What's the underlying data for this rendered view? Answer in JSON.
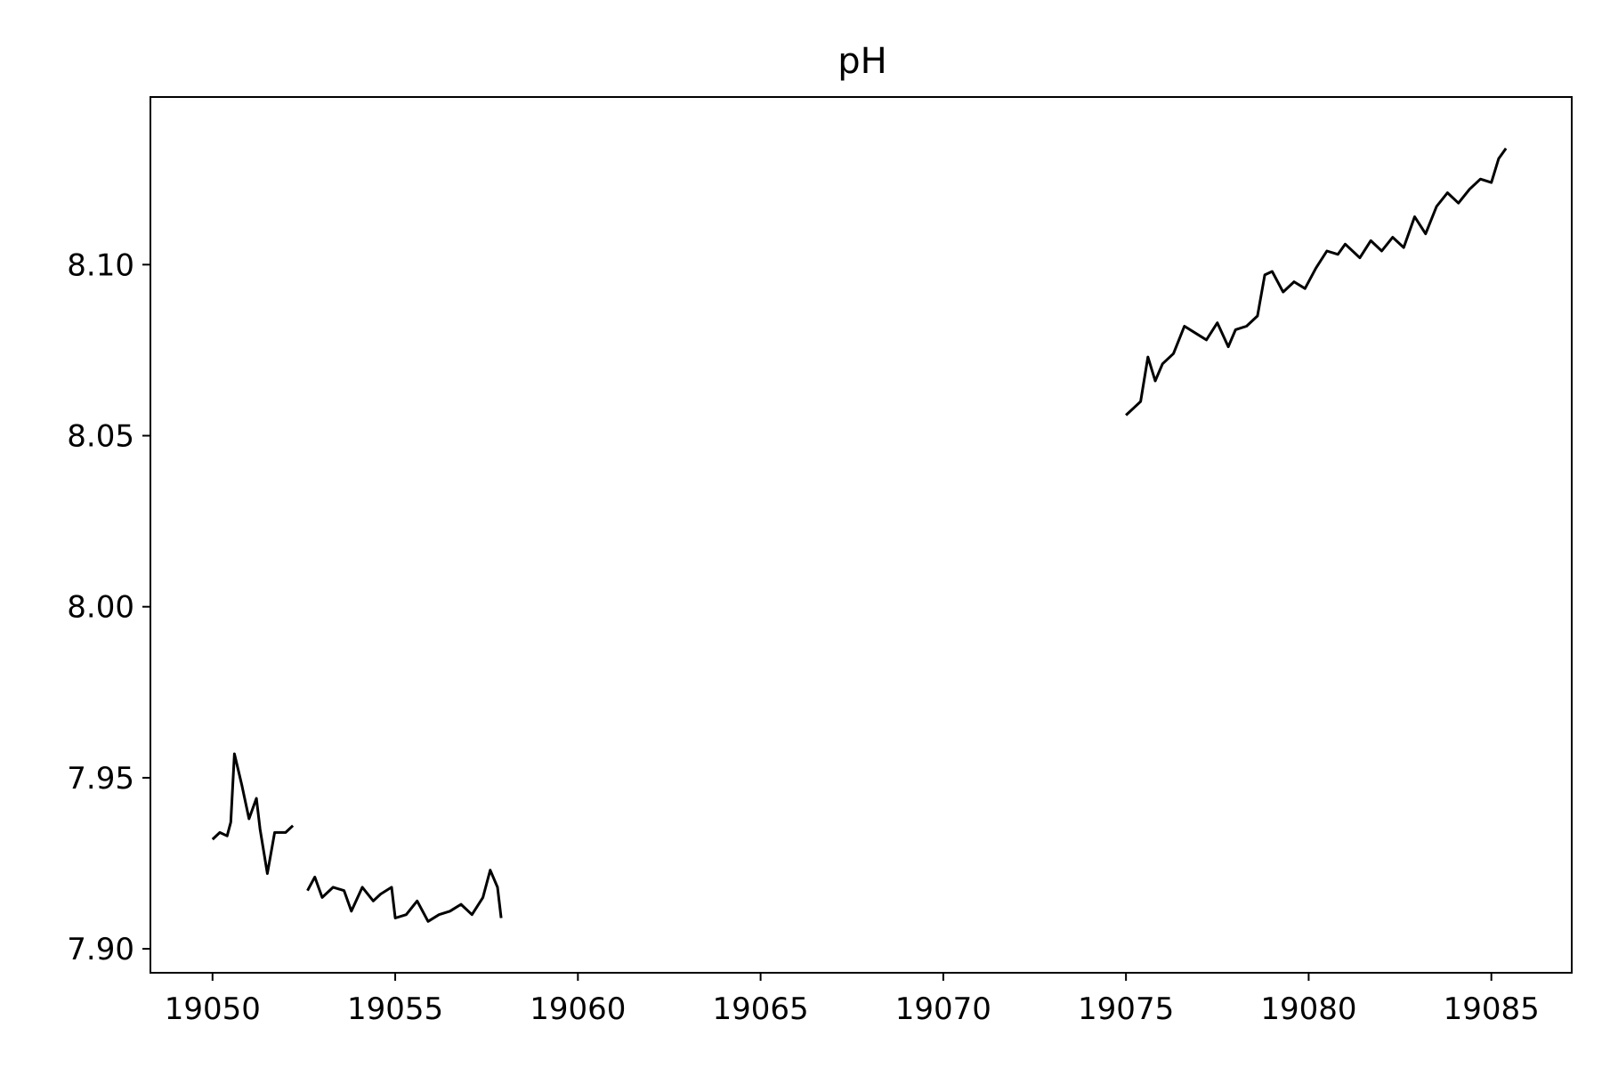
{
  "chart_data": {
    "type": "line",
    "title": "pH",
    "xlabel": "",
    "ylabel": "",
    "xlim": [
      19048.3,
      19087.2
    ],
    "ylim": [
      7.893,
      8.149
    ],
    "grid": false,
    "legend": "none",
    "line_color": "#000000",
    "xticks": [
      19050,
      19055,
      19060,
      19065,
      19070,
      19075,
      19080,
      19085
    ],
    "xtick_labels": [
      "19050",
      "19055",
      "19060",
      "19065",
      "19070",
      "19075",
      "19080",
      "19085"
    ],
    "yticks": [
      7.9,
      7.95,
      8.0,
      8.05,
      8.1
    ],
    "ytick_labels": [
      "7.90",
      "7.95",
      "8.00",
      "8.05",
      "8.10"
    ],
    "series": [
      {
        "x": [
          19050.0,
          19050.2,
          19050.4,
          19050.5,
          19050.6,
          19050.8,
          19051.0,
          19051.2,
          19051.3,
          19051.5,
          19051.7,
          19052.0,
          19052.2
        ],
        "y": [
          7.932,
          7.934,
          7.933,
          7.937,
          7.957,
          7.948,
          7.938,
          7.944,
          7.935,
          7.922,
          7.934,
          7.934,
          7.936
        ]
      },
      {
        "x": [
          19052.6,
          19052.8,
          19053.0,
          19053.3,
          19053.6,
          19053.8,
          19054.1,
          19054.4,
          19054.6,
          19054.9,
          19055.0,
          19055.3,
          19055.6,
          19055.9,
          19056.2,
          19056.5,
          19056.8,
          19057.1,
          19057.4,
          19057.6,
          19057.8,
          19057.9
        ],
        "y": [
          7.917,
          7.921,
          7.915,
          7.918,
          7.917,
          7.911,
          7.918,
          7.914,
          7.916,
          7.918,
          7.909,
          7.91,
          7.914,
          7.908,
          7.91,
          7.911,
          7.913,
          7.91,
          7.915,
          7.923,
          7.918,
          7.909
        ]
      },
      {
        "x": [
          19075.0,
          19075.2,
          19075.4,
          19075.6,
          19075.8,
          19076.0,
          19076.3,
          19076.6,
          19076.9,
          19077.2,
          19077.5,
          19077.8,
          19078.0,
          19078.3,
          19078.6,
          19078.8,
          19079.0,
          19079.3,
          19079.6,
          19079.9,
          19080.2,
          19080.5,
          19080.8,
          19081.0,
          19081.4,
          19081.7,
          19082.0,
          19082.3,
          19082.6,
          19082.9,
          19083.2,
          19083.5,
          19083.8,
          19084.1,
          19084.4,
          19084.7,
          19085.0,
          19085.2,
          19085.4
        ],
        "y": [
          8.056,
          8.058,
          8.06,
          8.073,
          8.066,
          8.071,
          8.074,
          8.082,
          8.08,
          8.078,
          8.083,
          8.076,
          8.081,
          8.082,
          8.085,
          8.097,
          8.098,
          8.092,
          8.095,
          8.093,
          8.099,
          8.104,
          8.103,
          8.106,
          8.102,
          8.107,
          8.104,
          8.108,
          8.105,
          8.114,
          8.109,
          8.117,
          8.121,
          8.118,
          8.122,
          8.125,
          8.124,
          8.131,
          8.134
        ]
      }
    ]
  }
}
